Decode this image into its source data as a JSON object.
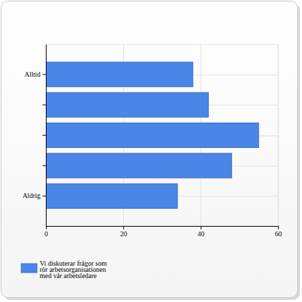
{
  "chart_data": {
    "type": "bar",
    "orientation": "horizontal",
    "categories": [
      "Alltid",
      null,
      null,
      null,
      "Aldrig"
    ],
    "series": [
      {
        "name": "Vi diskuterar frågor som rör arbetsorganisationen med vår arbetsledare",
        "color": "#4a86e8",
        "values": [
          38,
          42,
          55,
          48,
          34
        ]
      }
    ],
    "xlim": [
      0,
      60
    ],
    "xticks": [
      0,
      20,
      40,
      60
    ],
    "grid": true,
    "legend": "bottom-left"
  }
}
